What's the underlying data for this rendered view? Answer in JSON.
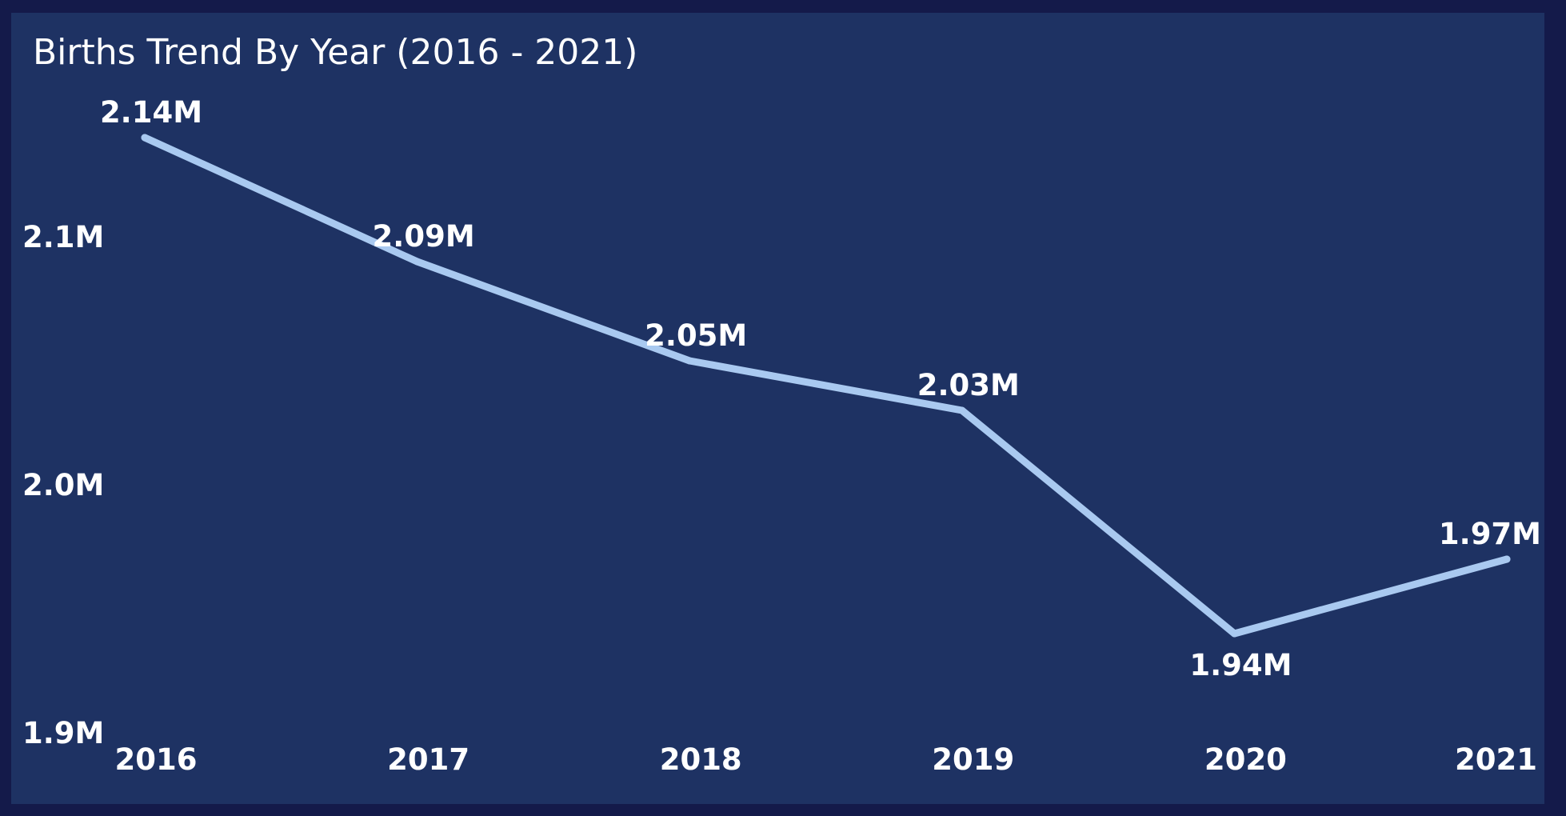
{
  "chart_data": {
    "type": "line",
    "title": "Births Trend By Year (2016 - 2021)",
    "xlabel": "",
    "ylabel": "",
    "categories": [
      "2016",
      "2017",
      "2018",
      "2019",
      "2020",
      "2021"
    ],
    "series": [
      {
        "values": [
          2.14,
          2.09,
          2.05,
          2.03,
          1.94,
          1.97
        ],
        "data_labels": [
          "2.14M",
          "2.09M",
          "2.05M",
          "2.03M",
          "1.94M",
          "1.97M"
        ]
      }
    ],
    "y_ticks": [
      {
        "value": 1.9,
        "label": "1.9M"
      },
      {
        "value": 2.0,
        "label": "2.0M"
      },
      {
        "value": 2.1,
        "label": "2.1M"
      }
    ],
    "ylim": [
      1.9,
      2.15
    ],
    "grid": false,
    "legend": "none",
    "colors": {
      "background": "#141a4a",
      "plot_background": "#1e3263",
      "line": "#a9c9f0",
      "text": "#ffffff"
    }
  }
}
